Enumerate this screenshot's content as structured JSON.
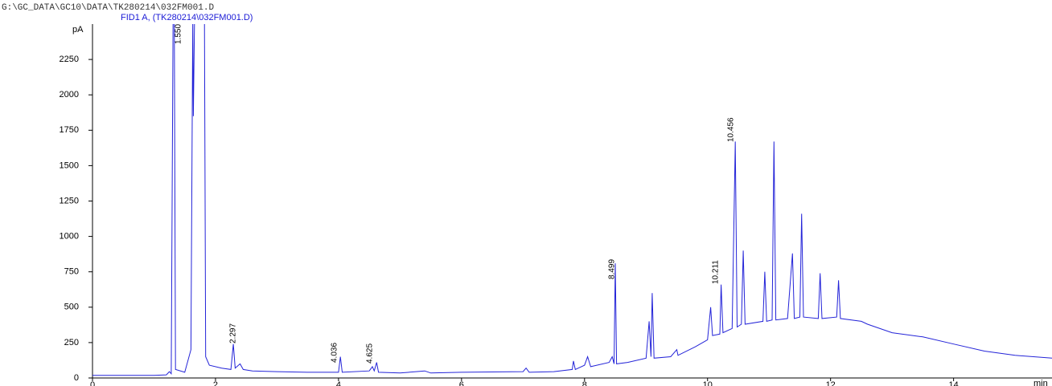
{
  "chart_data": {
    "type": "line",
    "title": "G:\\GC_DATA\\GC10\\DATA\\TK280214\\032FM001.D",
    "subtitle": "FID1 A, (TK280214\\032FM001.D)",
    "y_label": "pA",
    "x_label": "min",
    "xlim": [
      0,
      15.6
    ],
    "ylim": [
      0,
      2500
    ],
    "xticks": [
      0,
      2,
      4,
      6,
      8,
      10,
      12,
      14
    ],
    "yticks": [
      0,
      250,
      500,
      750,
      1000,
      1250,
      1500,
      1750,
      2000,
      2250
    ],
    "peak_labels": [
      "1.550",
      "2.297",
      "4.036",
      "4.625",
      "8.499",
      "10.211",
      "10.456"
    ],
    "series": [
      {
        "name": "FID1 A",
        "color": "#2424d8",
        "x": [
          0,
          1.0,
          1.2,
          1.25,
          1.28,
          1.31,
          1.33,
          1.35,
          1.5,
          1.6,
          1.63,
          1.64,
          1.66,
          1.78,
          1.82,
          1.84,
          1.9,
          2.1,
          2.25,
          2.29,
          2.32,
          2.4,
          2.45,
          2.6,
          3.0,
          3.5,
          4.0,
          4.03,
          4.06,
          4.5,
          4.55,
          4.58,
          4.62,
          4.65,
          5,
          5.4,
          5.5,
          6,
          7,
          7.05,
          7.1,
          7.5,
          7.8,
          7.82,
          7.85,
          8,
          8.05,
          8.1,
          8.4,
          8.45,
          8.48,
          8.5,
          8.52,
          8.7,
          9.0,
          9.05,
          9.08,
          9.1,
          9.13,
          9.4,
          9.5,
          9.52,
          9.8,
          10.0,
          10.05,
          10.08,
          10.2,
          10.22,
          10.25,
          10.4,
          10.45,
          10.48,
          10.55,
          10.58,
          10.61,
          10.9,
          10.93,
          10.96,
          11.05,
          11.08,
          11.11,
          11.3,
          11.38,
          11.41,
          11.5,
          11.53,
          11.56,
          11.8,
          11.83,
          11.86,
          12.1,
          12.13,
          12.16,
          12.5,
          12.6,
          13,
          13.5,
          14,
          14.5,
          15,
          15.6
        ],
        "values": [
          18,
          18,
          22,
          45,
          30,
          2550,
          2550,
          60,
          40,
          200,
          2550,
          1850,
          2550,
          2550,
          2550,
          150,
          90,
          70,
          60,
          240,
          70,
          100,
          60,
          50,
          45,
          40,
          40,
          150,
          40,
          50,
          80,
          50,
          110,
          40,
          35,
          50,
          35,
          40,
          45,
          70,
          40,
          45,
          60,
          120,
          60,
          90,
          150,
          80,
          110,
          150,
          100,
          810,
          100,
          110,
          140,
          400,
          150,
          600,
          140,
          150,
          200,
          160,
          220,
          270,
          500,
          300,
          310,
          660,
          320,
          350,
          1670,
          360,
          380,
          900,
          380,
          400,
          750,
          400,
          410,
          1670,
          410,
          420,
          880,
          420,
          430,
          1160,
          430,
          420,
          740,
          420,
          430,
          690,
          420,
          400,
          380,
          320,
          290,
          240,
          190,
          160,
          140
        ]
      }
    ]
  }
}
